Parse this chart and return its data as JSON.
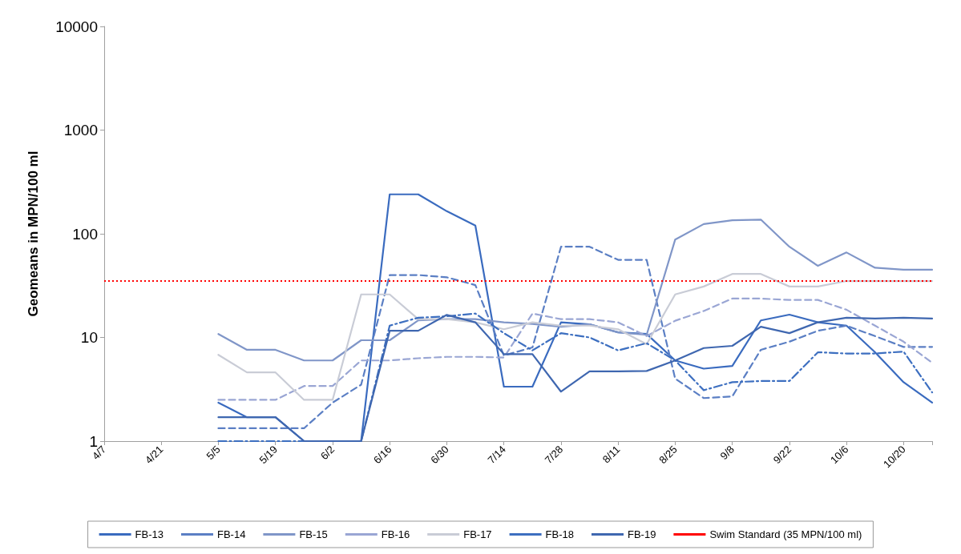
{
  "chart_data": {
    "type": "line",
    "ylabel": "Geomeans in MPN/100 ml",
    "log": "y",
    "ylim": [
      1,
      10000
    ],
    "yticks": [
      1,
      10,
      100,
      1000,
      10000
    ],
    "marker": "none",
    "legend": "bottom",
    "categories": [
      "4/7",
      null,
      "4/21",
      null,
      "5/5",
      null,
      "5/19",
      null,
      "6/2",
      null,
      "6/16",
      null,
      "6/30",
      null,
      "7/14",
      null,
      "7/28",
      null,
      "8/11",
      null,
      "8/25",
      null,
      "9/8",
      null,
      "9/22",
      null,
      "10/6",
      null,
      "10/20",
      null
    ],
    "series": [
      {
        "name": "FB-13",
        "color": "#3a6bbf",
        "line_style": "solid",
        "values": [
          null,
          null,
          null,
          null,
          2.35,
          1.7,
          1.7,
          1,
          1,
          1,
          240,
          240,
          165,
          120,
          3.35,
          3.35,
          14,
          13.4,
          11.2,
          10.8,
          6,
          5,
          5.3,
          14.6,
          16.6,
          14,
          13,
          7.2,
          3.7,
          2.35
        ]
      },
      {
        "name": "FB-14",
        "color": "#5b7fc4",
        "line_style": "dashed",
        "values": [
          null,
          null,
          null,
          null,
          1.33,
          1.33,
          1.33,
          1.33,
          2.35,
          3.5,
          40,
          40,
          38,
          32,
          6.7,
          8,
          75,
          75,
          56,
          56,
          4,
          2.6,
          2.7,
          7.6,
          9.1,
          11.6,
          13,
          10.3,
          8.1,
          8.1
        ]
      },
      {
        "name": "FB-15",
        "color": "#8096c8",
        "line_style": "solid",
        "values": [
          null,
          null,
          null,
          null,
          10.8,
          7.6,
          7.6,
          6,
          6,
          9.4,
          9.4,
          14.6,
          15,
          15,
          14,
          13.5,
          12.7,
          13.4,
          11.2,
          10.6,
          88,
          124,
          135,
          137,
          75,
          49,
          66,
          47,
          45,
          45
        ]
      },
      {
        "name": "FB-16",
        "color": "#9aa6d4",
        "line_style": "dashed",
        "values": [
          null,
          null,
          null,
          null,
          2.5,
          2.5,
          2.5,
          3.4,
          3.4,
          6,
          6,
          6.3,
          6.5,
          6.5,
          6.4,
          17,
          15,
          15,
          14,
          10.3,
          14.5,
          18,
          23.7,
          23.7,
          23,
          23,
          18.5,
          13,
          9.1,
          5.7
        ]
      },
      {
        "name": "FB-17",
        "color": "#c9ccd6",
        "line_style": "solid",
        "values": [
          null,
          null,
          null,
          null,
          6.8,
          4.6,
          4.6,
          2.5,
          2.5,
          26,
          26,
          15,
          15,
          14,
          12,
          14,
          13,
          13,
          12,
          8.6,
          26,
          31,
          41,
          41,
          31,
          31,
          35,
          35,
          35,
          35
        ]
      },
      {
        "name": "FB-18",
        "color": "#3d6fc0",
        "line_style": "dashdot",
        "values": [
          null,
          null,
          null,
          null,
          1,
          1,
          1,
          1,
          1,
          1,
          13,
          15.5,
          16,
          17,
          11,
          7.5,
          11,
          10,
          7.5,
          8.8,
          6,
          3.1,
          3.7,
          3.8,
          3.8,
          7.2,
          7,
          7,
          7.3,
          2.95
        ]
      },
      {
        "name": "FB-19",
        "color": "#3f67b0",
        "line_style": "solid",
        "values": [
          null,
          null,
          null,
          null,
          1.7,
          1.7,
          1.7,
          1,
          1,
          1,
          11.6,
          11.6,
          16.5,
          14,
          6.9,
          6.9,
          3,
          4.7,
          4.7,
          4.75,
          6,
          7.9,
          8.3,
          12.7,
          11,
          14,
          15.5,
          15.2,
          15.5,
          15.2
        ]
      }
    ],
    "ref_lines": [
      {
        "axis": "y",
        "value": 35,
        "label": "Swim Standard (35 MPN/100 ml)",
        "color": "#ff0000",
        "line_style": "dotted"
      }
    ]
  }
}
